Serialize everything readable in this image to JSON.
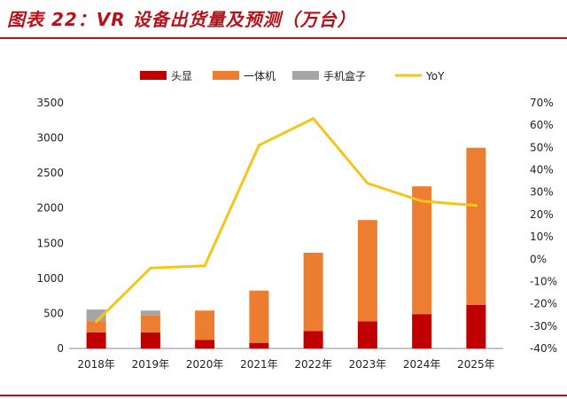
{
  "title": "图表 22：VR 设备出货量及预测（万台）",
  "chart_data": {
    "type": "bar",
    "stacked": true,
    "categories": [
      "2018年",
      "2019年",
      "2020年",
      "2021年",
      "2022年",
      "2023年",
      "2024年",
      "2025年"
    ],
    "series": [
      {
        "name": "头显",
        "type": "bar",
        "axis": "left",
        "color": "#c00000",
        "values": [
          230,
          230,
          120,
          80,
          250,
          385,
          490,
          620
        ]
      },
      {
        "name": "一体机",
        "type": "bar",
        "axis": "left",
        "color": "#ed7d31",
        "values": [
          160,
          240,
          420,
          745,
          1115,
          1445,
          1820,
          2240
        ]
      },
      {
        "name": "手机盒子",
        "type": "bar",
        "axis": "left",
        "color": "#a5a5a5",
        "values": [
          165,
          70,
          0,
          0,
          0,
          0,
          0,
          0
        ]
      },
      {
        "name": "YoY",
        "type": "line",
        "axis": "right",
        "color": "#f5c518",
        "values": [
          -0.28,
          -0.04,
          -0.03,
          0.51,
          0.63,
          0.34,
          0.26,
          0.24
        ]
      }
    ],
    "y_left": {
      "min": 0,
      "max": 3500,
      "ticks": [
        0,
        500,
        1000,
        1500,
        2000,
        2500,
        3000,
        3500
      ]
    },
    "y_right": {
      "min": -0.4,
      "max": 0.7,
      "ticks": [
        -0.4,
        -0.3,
        -0.2,
        -0.1,
        0,
        0.1,
        0.2,
        0.3,
        0.4,
        0.5,
        0.6,
        0.7
      ],
      "tick_labels": [
        "-40%",
        "-30%",
        "-20%",
        "-10%",
        "0%",
        "10%",
        "20%",
        "30%",
        "40%",
        "50%",
        "60%",
        "70%"
      ]
    },
    "legend": "top",
    "grid": false
  }
}
